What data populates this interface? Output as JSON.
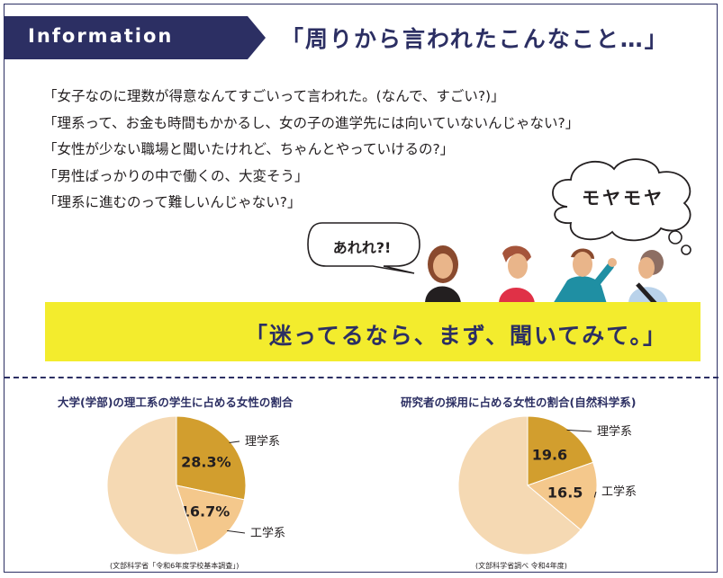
{
  "header": {
    "badge_label": "Information",
    "headline": "「周りから言われたこんなこと…」"
  },
  "quotes": [
    "「女子なのに理数が得意なんてすごいって言われた。(なんで、すごい?)」",
    "「理系って、お金も時間もかかるし、女の子の進学先には向いていないんじゃない?」",
    "「女性が少ない職場と聞いたけれど、ちゃんとやっていけるの?」",
    "「男性ばっかりの中で働くの、大変そう」",
    "「理系に進むのって難しいんじゃない?」"
  ],
  "speech_bubble": "あれれ?!",
  "thought_cloud": "モヤモヤ",
  "banner": "「迷ってるなら、まず、聞いてみて。」",
  "colors": {
    "navy": "#2c2f63",
    "yellow": "#f3ec2d",
    "science": "#d29e2e",
    "engineering": "#f4c88c",
    "other": "#f5d9b3"
  },
  "chart_data": [
    {
      "type": "pie",
      "title": "大学(学部)の理工系の学生に占める女性の割合",
      "slices": [
        {
          "label": "理学系",
          "value": 28.3,
          "value_label": "28.3%",
          "color": "#d29e2e"
        },
        {
          "label": "工学系",
          "value": 16.7,
          "value_label": "16.7%",
          "color": "#f4c88c"
        },
        {
          "label": "",
          "value": 55.0,
          "value_label": "",
          "color": "#f5d9b3"
        }
      ],
      "source": "(文部科学省「令和6年度学校基本調査」)"
    },
    {
      "type": "pie",
      "title": "研究者の採用に占める女性の割合(自然科学系)",
      "slices": [
        {
          "label": "理学系",
          "value": 19.6,
          "value_label": "19.6",
          "color": "#d29e2e"
        },
        {
          "label": "工学系",
          "value": 16.5,
          "value_label": "16.5",
          "color": "#f4c88c"
        },
        {
          "label": "",
          "value": 63.9,
          "value_label": "",
          "color": "#f5d9b3"
        }
      ],
      "source": "(文部科学省調べ 令和4年度)"
    }
  ]
}
